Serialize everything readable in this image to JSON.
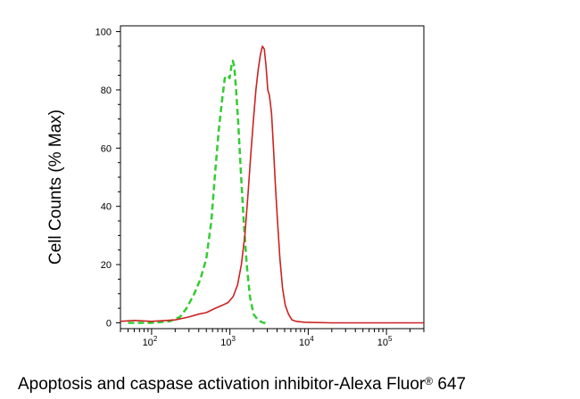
{
  "chart_data": {
    "type": "line",
    "xlabel_main": "Apoptosis and caspase activation inhibitor-Alexa Fluor",
    "xlabel_reg": "®",
    "xlabel_tail": " 647",
    "ylabel": "Cell Counts (% Max)",
    "x_scale": "log",
    "xlim": [
      40,
      300000
    ],
    "ylim": [
      -2,
      102
    ],
    "y_ticks": [
      0,
      20,
      40,
      60,
      80,
      100
    ],
    "y_tick_labels": [
      "0",
      "20",
      "40",
      "60",
      "80",
      "100"
    ],
    "x_ticks": [
      100,
      1000,
      10000,
      100000
    ],
    "x_tick_base": [
      "10",
      "10",
      "10",
      "10"
    ],
    "x_tick_exp": [
      "2",
      "3",
      "4",
      "5"
    ],
    "grid": false,
    "series": [
      {
        "style": "dashed",
        "color": "#33cc33",
        "points": [
          [
            50,
            0
          ],
          [
            100,
            0
          ],
          [
            170,
            0.5
          ],
          [
            230,
            2
          ],
          [
            280,
            5
          ],
          [
            350,
            10
          ],
          [
            420,
            15
          ],
          [
            500,
            22
          ],
          [
            580,
            35
          ],
          [
            650,
            52
          ],
          [
            720,
            66
          ],
          [
            790,
            76
          ],
          [
            860,
            84
          ],
          [
            930,
            85
          ],
          [
            990,
            84
          ],
          [
            1040,
            88
          ],
          [
            1090,
            90
          ],
          [
            1140,
            88
          ],
          [
            1200,
            80
          ],
          [
            1280,
            68
          ],
          [
            1380,
            52
          ],
          [
            1500,
            35
          ],
          [
            1640,
            20
          ],
          [
            1800,
            9
          ],
          [
            2000,
            3
          ],
          [
            2300,
            0.8
          ],
          [
            2700,
            0
          ],
          [
            3000,
            0
          ]
        ]
      },
      {
        "style": "solid",
        "color": "#cc2222",
        "points": [
          [
            40,
            0.5
          ],
          [
            60,
            0.8
          ],
          [
            100,
            0.5
          ],
          [
            200,
            1
          ],
          [
            300,
            2
          ],
          [
            400,
            3
          ],
          [
            500,
            3.5
          ],
          [
            650,
            5
          ],
          [
            800,
            6
          ],
          [
            950,
            7
          ],
          [
            1100,
            9
          ],
          [
            1250,
            13
          ],
          [
            1400,
            20
          ],
          [
            1550,
            30
          ],
          [
            1700,
            44
          ],
          [
            1850,
            58
          ],
          [
            2000,
            70
          ],
          [
            2150,
            80
          ],
          [
            2300,
            87
          ],
          [
            2450,
            92
          ],
          [
            2600,
            95
          ],
          [
            2750,
            94
          ],
          [
            2900,
            88
          ],
          [
            3050,
            80
          ],
          [
            3200,
            78
          ],
          [
            3400,
            72
          ],
          [
            3600,
            60
          ],
          [
            3800,
            48
          ],
          [
            4050,
            35
          ],
          [
            4350,
            22
          ],
          [
            4700,
            12
          ],
          [
            5100,
            6
          ],
          [
            5600,
            3
          ],
          [
            6200,
            1
          ],
          [
            7000,
            0.5
          ],
          [
            9000,
            0.2
          ],
          [
            20000,
            0
          ],
          [
            300000,
            0
          ]
        ]
      }
    ]
  }
}
